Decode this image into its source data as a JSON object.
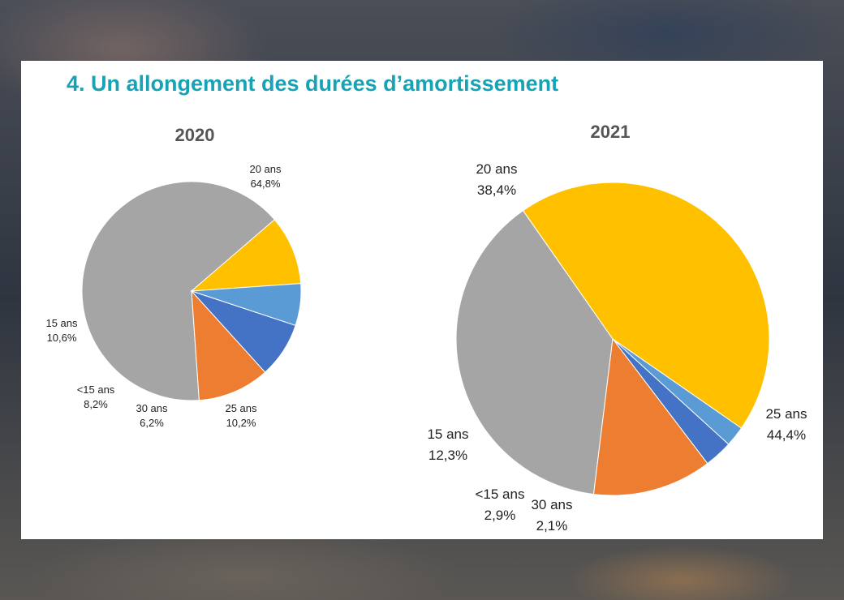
{
  "title": "4. Un allongement des durées d’amortissement",
  "chart_data": [
    {
      "type": "pie",
      "title": "2020",
      "slices": [
        {
          "label": "20 ans",
          "value": 64.8,
          "display": "64,8%",
          "color": "#a5a5a5"
        },
        {
          "label": "25 ans",
          "value": 10.2,
          "display": "10,2%",
          "color": "#ffc000"
        },
        {
          "label": "30 ans",
          "value": 6.2,
          "display": "6,2%",
          "color": "#5b9bd5"
        },
        {
          "label": "<15 ans",
          "value": 8.2,
          "display": "8,2%",
          "color": "#4472c4"
        },
        {
          "label": "15 ans",
          "value": 10.6,
          "display": "10,6%",
          "color": "#ed7d31"
        }
      ]
    },
    {
      "type": "pie",
      "title": "2021",
      "slices": [
        {
          "label": "20 ans",
          "value": 38.4,
          "display": "38,4%",
          "color": "#a5a5a5"
        },
        {
          "label": "25 ans",
          "value": 44.4,
          "display": "44,4%",
          "color": "#ffc000"
        },
        {
          "label": "30 ans",
          "value": 2.1,
          "display": "2,1%",
          "color": "#5b9bd5"
        },
        {
          "label": "<15 ans",
          "value": 2.9,
          "display": "2,9%",
          "color": "#4472c4"
        },
        {
          "label": "15 ans",
          "value": 12.3,
          "display": "12,3%",
          "color": "#ed7d31"
        }
      ]
    }
  ]
}
